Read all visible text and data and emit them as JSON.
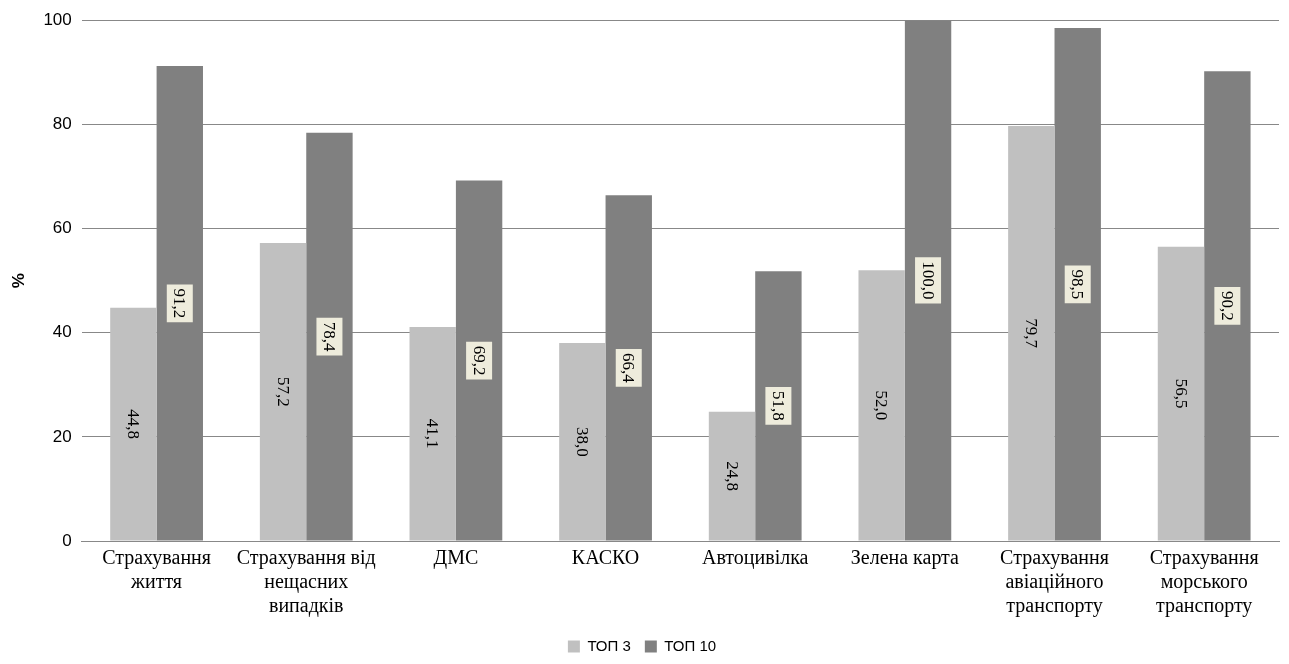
{
  "chart_data": {
    "type": "bar",
    "ylabel": "%",
    "categories": [
      "Страхування життя",
      "Страхування від нещасних випадків",
      "ДМС",
      "КАСКО",
      "Автоцивілка",
      "Зелена карта",
      "Страхування авіаційного транспорту",
      "Страхування морського транспорту"
    ],
    "series": [
      {
        "name": "ТОП 3",
        "color": "#c0c0c0",
        "values": [
          44.8,
          57.2,
          41.1,
          38.0,
          24.8,
          52.0,
          79.7,
          56.5
        ],
        "value_labels": [
          "44,8",
          "57,2",
          "41,1",
          "38,0",
          "24,8",
          "52,0",
          "79,7",
          "56,5"
        ]
      },
      {
        "name": "ТОП 10",
        "color": "#808080",
        "values": [
          91.2,
          78.4,
          69.2,
          66.4,
          51.8,
          100.0,
          98.5,
          90.2
        ],
        "value_labels": [
          "91,2",
          "78,4",
          "69,2",
          "66,4",
          "51,8",
          "100,0",
          "98,5",
          "90,2"
        ]
      }
    ],
    "ylim": [
      0,
      100
    ],
    "yticks": [
      0,
      20,
      40,
      60,
      80,
      100
    ],
    "grid": "y",
    "legend": "bottom"
  }
}
